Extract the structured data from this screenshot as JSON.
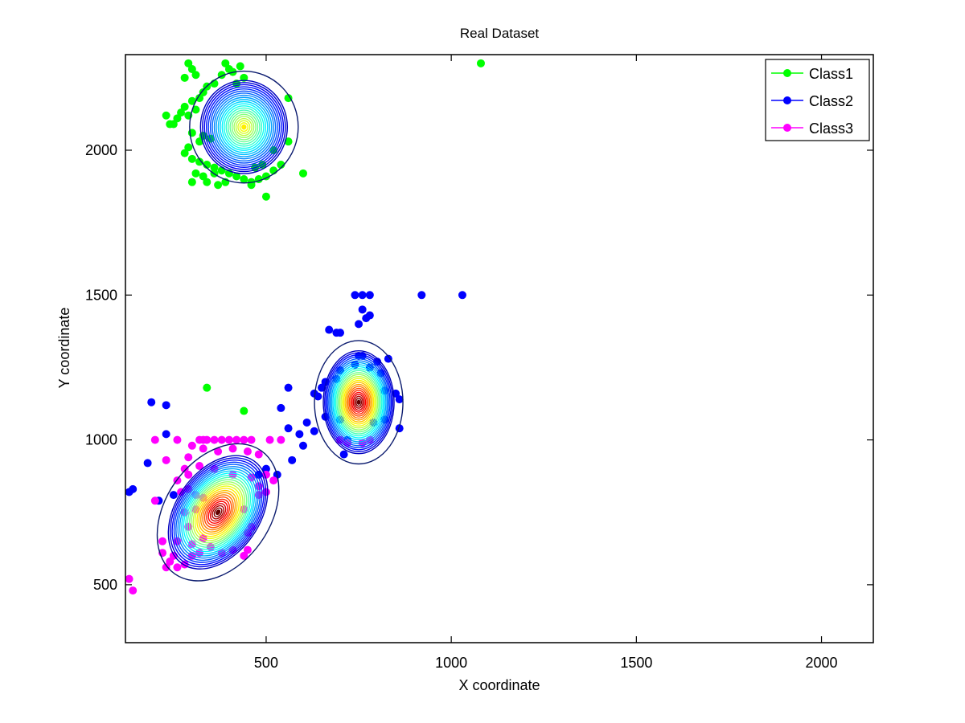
{
  "chart_data": {
    "type": "scatter",
    "title": "Real Dataset",
    "xlabel": "X coordinate",
    "ylabel": "Y coordinate",
    "xlim": [
      120,
      2140
    ],
    "ylim": [
      300,
      2330
    ],
    "xticks": [
      500,
      1000,
      1500,
      2000
    ],
    "yticks": [
      500,
      1000,
      1500,
      2000
    ],
    "grid": false,
    "legend": "top-right",
    "series": [
      {
        "name": "Class1",
        "color": "#00ff00",
        "points": [
          [
            290,
            2300
          ],
          [
            300,
            2280
          ],
          [
            310,
            2260
          ],
          [
            280,
            2250
          ],
          [
            390,
            2300
          ],
          [
            400,
            2280
          ],
          [
            380,
            2260
          ],
          [
            410,
            2270
          ],
          [
            430,
            2290
          ],
          [
            440,
            2250
          ],
          [
            420,
            2230
          ],
          [
            360,
            2230
          ],
          [
            340,
            2220
          ],
          [
            330,
            2200
          ],
          [
            320,
            2180
          ],
          [
            300,
            2170
          ],
          [
            280,
            2150
          ],
          [
            270,
            2130
          ],
          [
            260,
            2110
          ],
          [
            250,
            2090
          ],
          [
            310,
            2140
          ],
          [
            290,
            2120
          ],
          [
            230,
            2120
          ],
          [
            240,
            2090
          ],
          [
            300,
            2060
          ],
          [
            330,
            2050
          ],
          [
            350,
            2040
          ],
          [
            320,
            2030
          ],
          [
            290,
            2010
          ],
          [
            280,
            1990
          ],
          [
            300,
            1970
          ],
          [
            320,
            1960
          ],
          [
            340,
            1950
          ],
          [
            360,
            1940
          ],
          [
            380,
            1930
          ],
          [
            400,
            1920
          ],
          [
            420,
            1910
          ],
          [
            440,
            1900
          ],
          [
            460,
            1890
          ],
          [
            480,
            1900
          ],
          [
            500,
            1910
          ],
          [
            520,
            1930
          ],
          [
            540,
            1950
          ],
          [
            560,
            2030
          ],
          [
            560,
            2180
          ],
          [
            520,
            2000
          ],
          [
            490,
            1950
          ],
          [
            470,
            1940
          ],
          [
            360,
            1920
          ],
          [
            330,
            1910
          ],
          [
            310,
            1920
          ],
          [
            300,
            1890
          ],
          [
            340,
            1890
          ],
          [
            370,
            1880
          ],
          [
            390,
            1890
          ],
          [
            460,
            1880
          ],
          [
            500,
            1840
          ],
          [
            600,
            1920
          ],
          [
            1080,
            2300
          ],
          [
            440,
            1100
          ],
          [
            340,
            1180
          ]
        ]
      },
      {
        "name": "Class2",
        "color": "#0000ff",
        "points": [
          [
            740,
            1500
          ],
          [
            760,
            1500
          ],
          [
            780,
            1500
          ],
          [
            920,
            1500
          ],
          [
            1030,
            1500
          ],
          [
            760,
            1450
          ],
          [
            780,
            1430
          ],
          [
            770,
            1420
          ],
          [
            750,
            1400
          ],
          [
            670,
            1380
          ],
          [
            690,
            1370
          ],
          [
            700,
            1370
          ],
          [
            750,
            1290
          ],
          [
            760,
            1290
          ],
          [
            800,
            1270
          ],
          [
            830,
            1280
          ],
          [
            700,
            1240
          ],
          [
            740,
            1260
          ],
          [
            780,
            1250
          ],
          [
            810,
            1230
          ],
          [
            660,
            1200
          ],
          [
            690,
            1210
          ],
          [
            650,
            1180
          ],
          [
            640,
            1150
          ],
          [
            630,
            1160
          ],
          [
            820,
            1170
          ],
          [
            850,
            1160
          ],
          [
            860,
            1140
          ],
          [
            610,
            1060
          ],
          [
            660,
            1080
          ],
          [
            700,
            1070
          ],
          [
            790,
            1060
          ],
          [
            820,
            1070
          ],
          [
            860,
            1040
          ],
          [
            630,
            1030
          ],
          [
            720,
            1000
          ],
          [
            710,
            950
          ],
          [
            560,
            1180
          ],
          [
            540,
            1110
          ],
          [
            190,
            1130
          ],
          [
            230,
            1120
          ],
          [
            230,
            1020
          ],
          [
            180,
            920
          ],
          [
            130,
            820
          ],
          [
            140,
            830
          ],
          [
            250,
            810
          ],
          [
            210,
            790
          ],
          [
            530,
            880
          ],
          [
            500,
            900
          ],
          [
            480,
            880
          ],
          [
            560,
            1040
          ],
          [
            590,
            1020
          ],
          [
            600,
            980
          ],
          [
            570,
            930
          ]
        ]
      },
      {
        "name": "Class3",
        "color": "#ff00ff",
        "points": [
          [
            200,
            1000
          ],
          [
            260,
            1000
          ],
          [
            320,
            1000
          ],
          [
            330,
            1000
          ],
          [
            340,
            1000
          ],
          [
            360,
            1000
          ],
          [
            380,
            1000
          ],
          [
            400,
            1000
          ],
          [
            420,
            1000
          ],
          [
            440,
            1000
          ],
          [
            460,
            1000
          ],
          [
            510,
            1000
          ],
          [
            540,
            1000
          ],
          [
            300,
            980
          ],
          [
            330,
            970
          ],
          [
            370,
            960
          ],
          [
            410,
            970
          ],
          [
            450,
            960
          ],
          [
            480,
            950
          ],
          [
            290,
            940
          ],
          [
            230,
            930
          ],
          [
            280,
            900
          ],
          [
            320,
            910
          ],
          [
            360,
            900
          ],
          [
            410,
            880
          ],
          [
            460,
            870
          ],
          [
            500,
            880
          ],
          [
            520,
            860
          ],
          [
            480,
            840
          ],
          [
            290,
            880
          ],
          [
            260,
            860
          ],
          [
            270,
            820
          ],
          [
            290,
            830
          ],
          [
            310,
            810
          ],
          [
            330,
            800
          ],
          [
            480,
            810
          ],
          [
            500,
            820
          ],
          [
            440,
            760
          ],
          [
            460,
            700
          ],
          [
            450,
            620
          ],
          [
            440,
            600
          ],
          [
            410,
            620
          ],
          [
            380,
            610
          ],
          [
            350,
            630
          ],
          [
            320,
            610
          ],
          [
            300,
            600
          ],
          [
            280,
            570
          ],
          [
            260,
            560
          ],
          [
            230,
            560
          ],
          [
            240,
            580
          ],
          [
            220,
            610
          ],
          [
            250,
            600
          ],
          [
            260,
            650
          ],
          [
            220,
            650
          ],
          [
            200,
            790
          ],
          [
            130,
            520
          ],
          [
            140,
            480
          ],
          [
            280,
            750
          ],
          [
            290,
            700
          ],
          [
            300,
            640
          ],
          [
            310,
            760
          ],
          [
            330,
            660
          ],
          [
            450,
            680
          ],
          [
            700,
            1000
          ],
          [
            720,
            990
          ],
          [
            760,
            990
          ],
          [
            780,
            1000
          ]
        ]
      }
    ],
    "density_centers": [
      {
        "class": "Class1",
        "x": 440,
        "y": 2080,
        "peak": 0.6
      },
      {
        "class": "Class2",
        "x": 750,
        "y": 1130,
        "peak": 1.0
      },
      {
        "class": "Class3",
        "x": 370,
        "y": 750,
        "peak": 1.0
      }
    ]
  }
}
